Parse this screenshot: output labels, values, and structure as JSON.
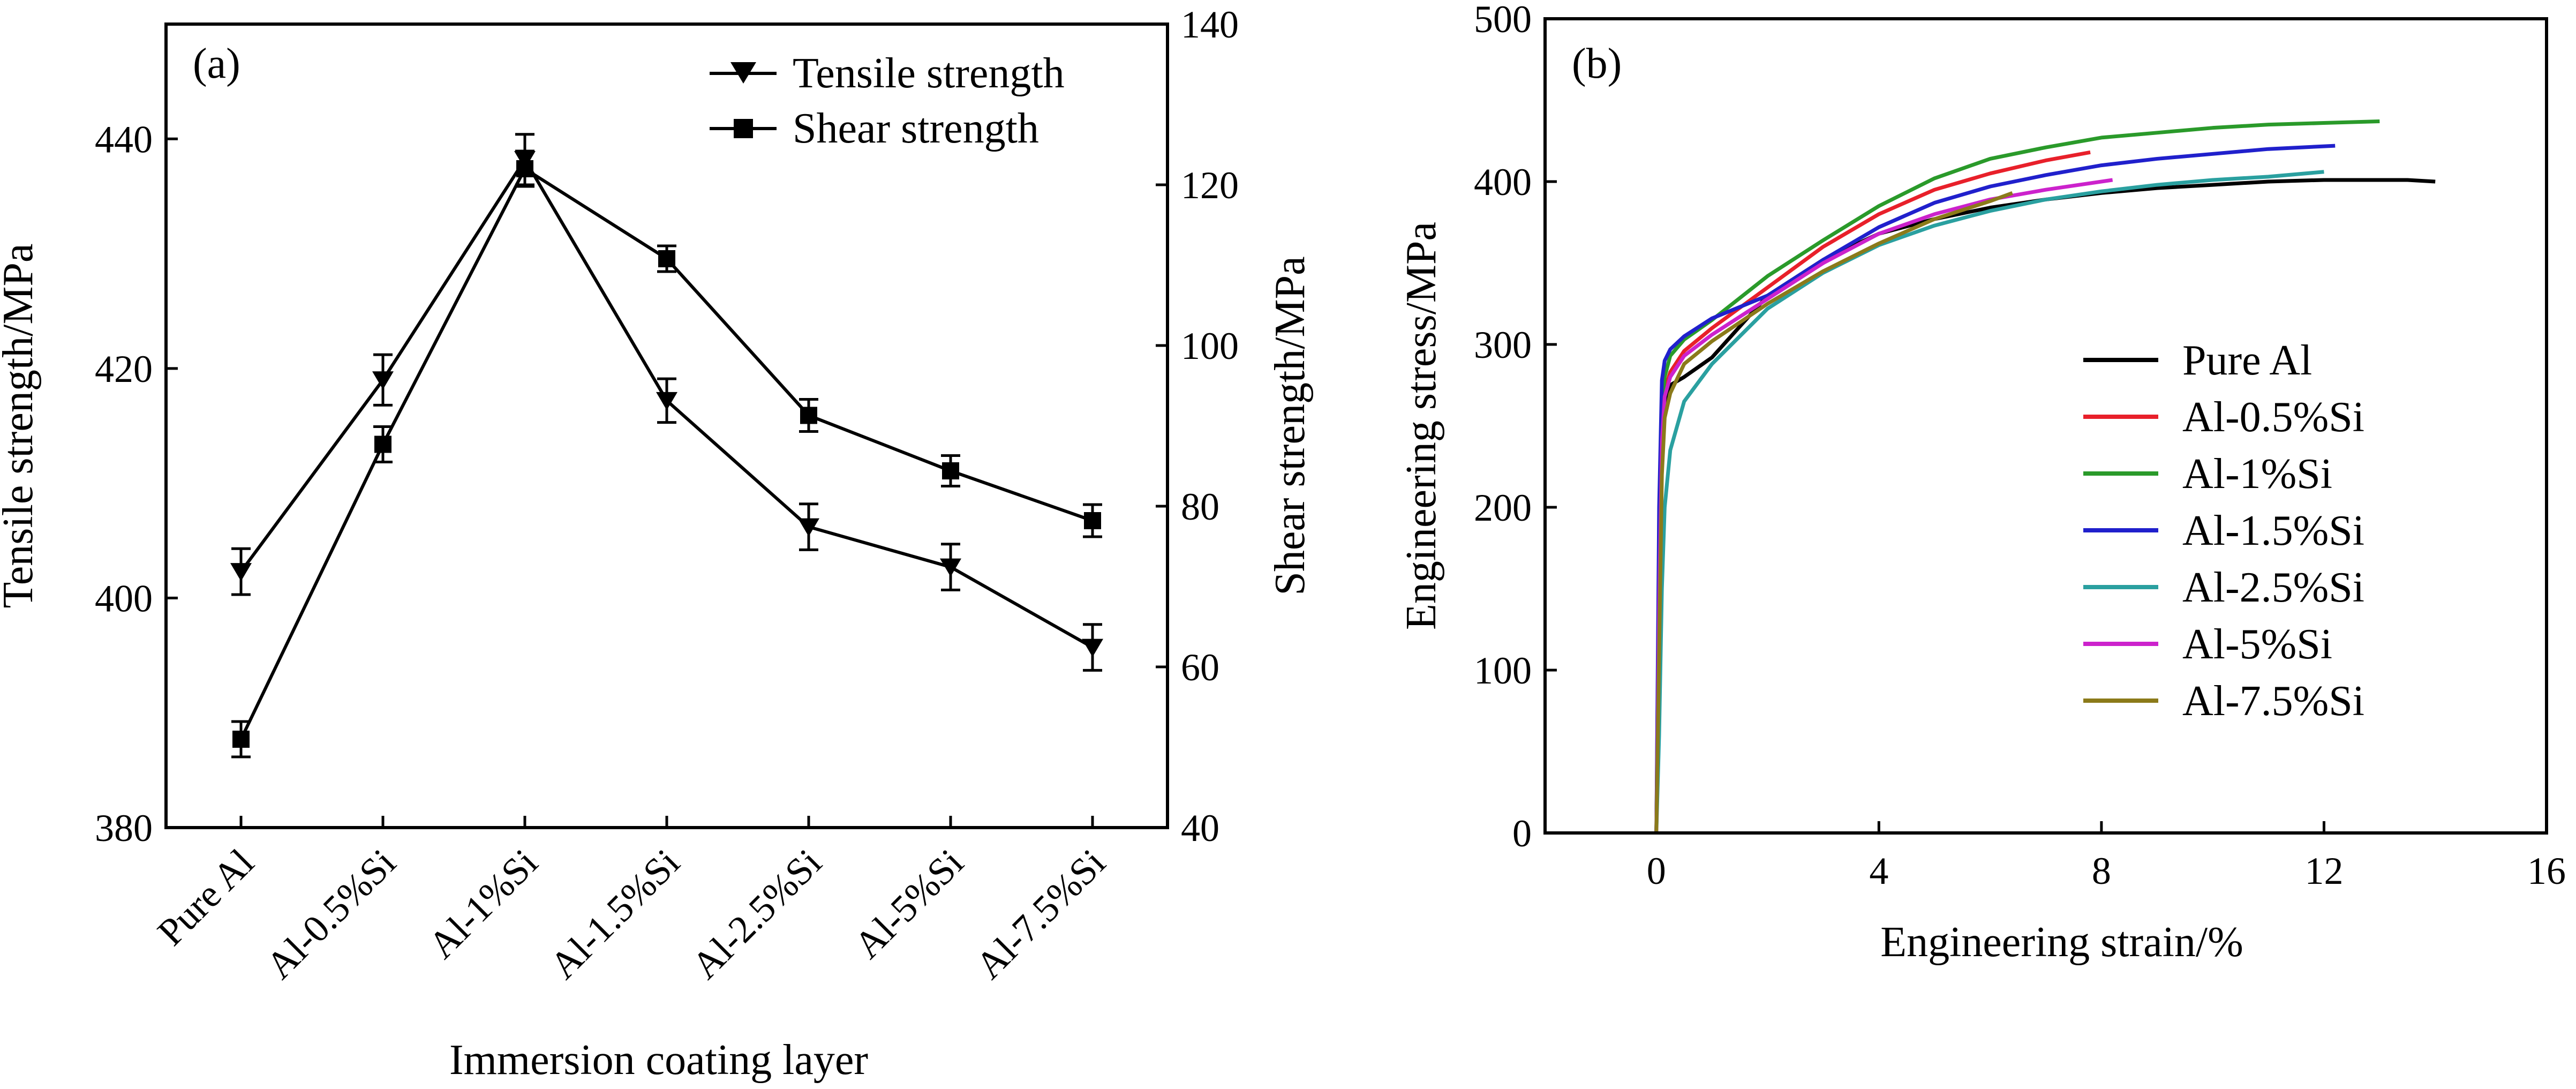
{
  "chart_data": [
    {
      "type": "line",
      "panel_label": "(a)",
      "xlabel": "Immersion coating layer",
      "categories": [
        "Pure Al",
        "Al-0.5%Si",
        "Al-1%Si",
        "Al-1.5%Si",
        "Al-2.5%Si",
        "Al-5%Si",
        "Al-7.5%Si"
      ],
      "ylabel_left": "Tensile strength/MPa",
      "ylabel_right": "Shear strength/MPa",
      "ylim_left": [
        380,
        450
      ],
      "yticks_left": [
        380,
        400,
        420,
        440
      ],
      "ylim_right": [
        40,
        140
      ],
      "yticks_right": [
        40,
        60,
        80,
        100,
        120,
        140
      ],
      "legend_position": "top-right",
      "series": [
        {
          "name": "Tensile strength",
          "axis": "left",
          "marker": "triangle-down",
          "values": [
            402.3,
            419.0,
            438.2,
            417.2,
            406.2,
            402.7,
            395.7
          ],
          "errors": [
            2.0,
            2.2,
            2.2,
            1.9,
            2.0,
            2.0,
            2.0
          ]
        },
        {
          "name": "Shear strength",
          "axis": "right",
          "marker": "square",
          "values": [
            51.0,
            87.7,
            122.0,
            110.8,
            91.3,
            84.4,
            78.2
          ],
          "errors": [
            2.2,
            2.2,
            2.2,
            1.6,
            2.0,
            1.9,
            2.0
          ]
        }
      ]
    },
    {
      "type": "line",
      "panel_label": "(b)",
      "xlabel": "Engineering strain/%",
      "ylabel": "Engineering stress/MPa",
      "xlim": [
        -2,
        16
      ],
      "xticks": [
        0,
        4,
        8,
        12,
        16
      ],
      "ylim": [
        0,
        500
      ],
      "yticks": [
        0,
        100,
        200,
        300,
        400,
        500
      ],
      "legend_position": "center-right",
      "series": [
        {
          "name": "Pure Al",
          "color": "#000000",
          "x": [
            0,
            0.05,
            0.1,
            0.15,
            0.25,
            0.5,
            1.0,
            2.0,
            3.0,
            4.0,
            5.0,
            6.0,
            7.0,
            8.0,
            9.0,
            10.0,
            11.0,
            12.0,
            13.0,
            13.5,
            14.0
          ],
          "y": [
            0,
            120,
            230,
            262,
            275,
            280,
            292,
            330,
            352,
            368,
            377,
            384,
            389,
            393,
            396,
            398,
            400,
            401,
            401,
            401,
            400
          ]
        },
        {
          "name": "Al-0.5%Si",
          "color": "#e8202a",
          "x": [
            0,
            0.05,
            0.1,
            0.15,
            0.25,
            0.5,
            1.0,
            2.0,
            3.0,
            4.0,
            5.0,
            6.0,
            7.0,
            7.8
          ],
          "y": [
            0,
            150,
            250,
            272,
            283,
            296,
            310,
            335,
            360,
            380,
            395,
            405,
            413,
            418
          ]
        },
        {
          "name": "Al-1%Si",
          "color": "#2a9a2a",
          "x": [
            0,
            0.05,
            0.1,
            0.15,
            0.25,
            0.5,
            1.0,
            2.0,
            3.0,
            4.0,
            5.0,
            6.0,
            7.0,
            8.0,
            9.0,
            10.0,
            11.0,
            12.0,
            13.0
          ],
          "y": [
            0,
            180,
            262,
            280,
            293,
            303,
            315,
            342,
            364,
            385,
            402,
            414,
            421,
            427,
            430,
            433,
            435,
            436,
            437
          ]
        },
        {
          "name": "Al-1.5%Si",
          "color": "#2020cc",
          "x": [
            0,
            0.05,
            0.1,
            0.15,
            0.25,
            0.5,
            1.0,
            2.0,
            3.0,
            4.0,
            5.0,
            6.0,
            7.0,
            8.0,
            9.0,
            10.0,
            11.0,
            12.2
          ],
          "y": [
            0,
            200,
            278,
            290,
            297,
            305,
            316,
            330,
            352,
            372,
            387,
            397,
            404,
            410,
            414,
            417,
            420,
            422
          ]
        },
        {
          "name": "Al-2.5%Si",
          "color": "#2aa0a0",
          "x": [
            0,
            0.05,
            0.1,
            0.15,
            0.25,
            0.5,
            1.0,
            2.0,
            3.0,
            4.0,
            5.0,
            6.0,
            7.0,
            8.0,
            9.0,
            10.0,
            11.0,
            12.0
          ],
          "y": [
            0,
            60,
            150,
            200,
            235,
            265,
            288,
            322,
            344,
            361,
            373,
            382,
            389,
            394,
            398,
            401,
            403,
            406
          ]
        },
        {
          "name": "Al-5%Si",
          "color": "#cc22cc",
          "x": [
            0,
            0.05,
            0.1,
            0.15,
            0.25,
            0.5,
            1.0,
            2.0,
            3.0,
            4.0,
            5.0,
            6.0,
            7.0,
            8.2
          ],
          "y": [
            0,
            140,
            240,
            268,
            280,
            293,
            306,
            328,
            350,
            368,
            380,
            389,
            395,
            401
          ]
        },
        {
          "name": "Al-7.5%Si",
          "color": "#8b7a1a",
          "x": [
            0,
            0.05,
            0.1,
            0.15,
            0.25,
            0.5,
            1.0,
            2.0,
            3.0,
            4.0,
            5.0,
            6.0,
            6.4
          ],
          "y": [
            0,
            110,
            220,
            255,
            270,
            288,
            302,
            325,
            345,
            362,
            377,
            388,
            393
          ]
        }
      ]
    }
  ]
}
